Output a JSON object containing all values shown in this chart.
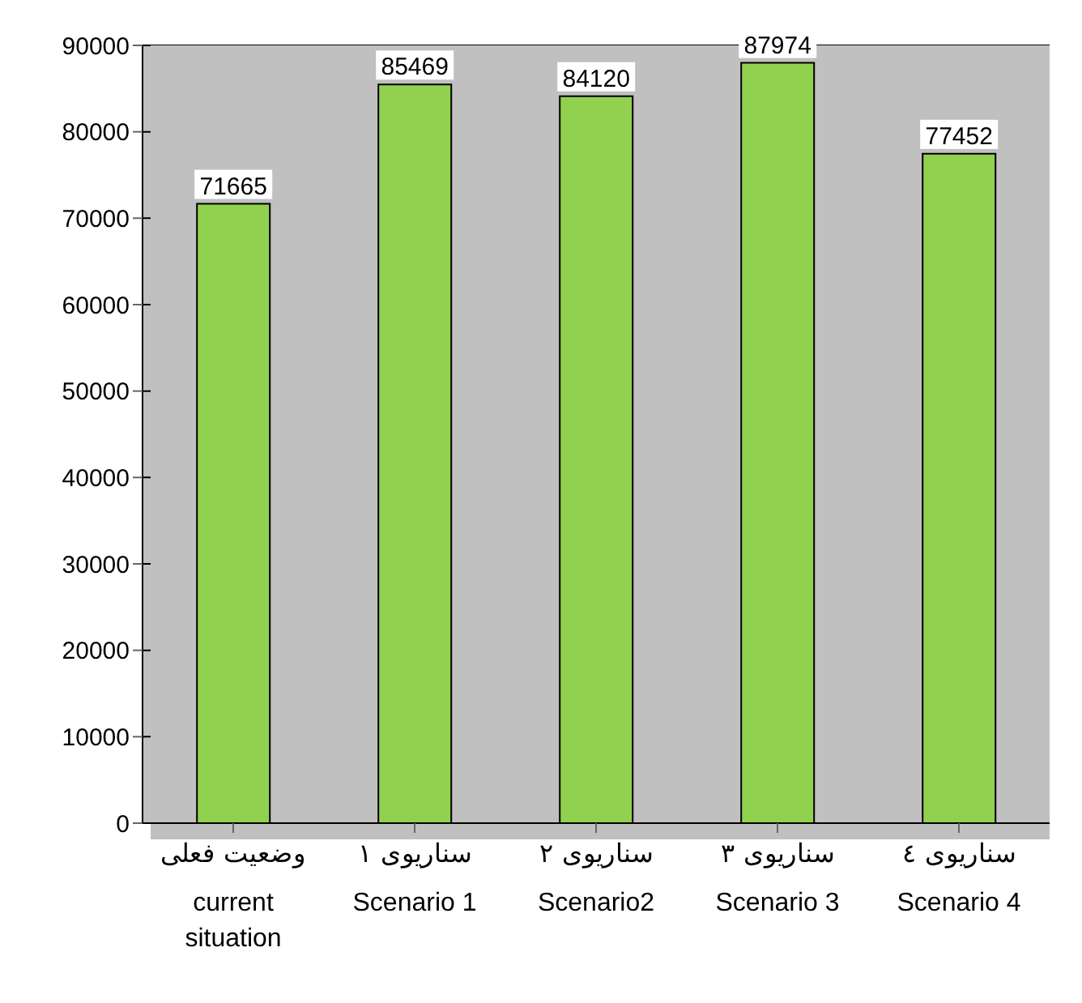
{
  "chart_data": {
    "type": "bar",
    "categories": [
      "وضعیت فعلی\ncurrent situation",
      "سناریوی ۱\nScenario 1",
      "سناریوی ۲\nScenario2",
      "سناریوی ۳\nScenario 3",
      "سناریوی ٤\nScenario 4"
    ],
    "values": [
      71665,
      85469,
      84120,
      87974,
      77452
    ],
    "color": "#92d050",
    "ylim": [
      0,
      90000
    ],
    "yticks": [
      0,
      10000,
      20000,
      30000,
      40000,
      50000,
      60000,
      70000,
      80000,
      90000
    ],
    "grid": "y",
    "data_labels": true
  }
}
